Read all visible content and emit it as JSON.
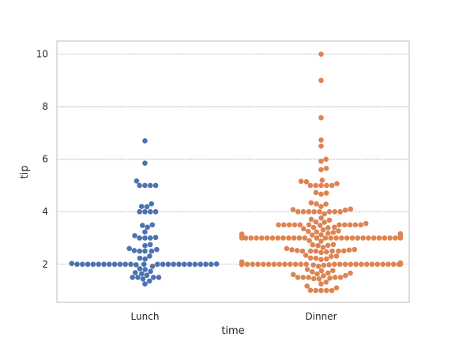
{
  "chart_data": {
    "type": "scatter",
    "title": "",
    "xlabel": "time",
    "ylabel": "tip",
    "categories": [
      "Lunch",
      "Dinner"
    ],
    "ylim": [
      0.55,
      10.5
    ],
    "yticks": [
      2,
      4,
      6,
      8,
      10
    ],
    "grid": "y",
    "legend": "none",
    "series": [
      {
        "category": "Lunch",
        "color": "#4c72b0",
        "values": [
          1.25,
          1.36,
          1.44,
          1.5,
          1.5,
          1.5,
          1.5,
          1.58,
          1.64,
          1.68,
          1.73,
          1.8,
          1.83,
          1.92,
          1.98,
          2.0,
          2.0,
          2.0,
          2.0,
          2.0,
          2.0,
          2.0,
          2.0,
          2.0,
          2.0,
          2.0,
          2.0,
          2.0,
          2.0,
          2.0,
          2.0,
          2.0,
          2.0,
          2.0,
          2.0,
          2.0,
          2.0,
          2.0,
          2.01,
          2.03,
          2.2,
          2.23,
          2.31,
          2.5,
          2.5,
          2.5,
          2.52,
          2.56,
          2.6,
          2.71,
          2.75,
          3.0,
          3.0,
          3.0,
          3.02,
          3.09,
          3.23,
          3.41,
          3.48,
          3.5,
          4.0,
          4.0,
          4.0,
          4.0,
          4.19,
          4.2,
          4.3,
          5.0,
          5.0,
          5.0,
          5.0,
          5.17,
          5.85,
          6.7
        ]
      },
      {
        "category": "Dinner",
        "color": "#dd8452",
        "values": [
          1.0,
          1.0,
          1.0,
          1.0,
          1.01,
          1.1,
          1.17,
          1.25,
          1.32,
          1.44,
          1.45,
          1.47,
          1.5,
          1.5,
          1.5,
          1.5,
          1.5,
          1.56,
          1.57,
          1.61,
          1.63,
          1.66,
          1.67,
          1.71,
          1.75,
          1.76,
          1.8,
          1.92,
          1.96,
          1.97,
          1.98,
          2.0,
          2.0,
          2.0,
          2.0,
          2.0,
          2.0,
          2.0,
          2.0,
          2.0,
          2.0,
          2.0,
          2.0,
          2.0,
          2.0,
          2.0,
          2.0,
          2.0,
          2.0,
          2.0,
          2.0,
          2.0,
          2.0,
          2.0,
          2.0,
          2.0,
          2.0,
          2.0,
          2.0,
          2.0,
          2.0,
          2.0,
          2.0,
          2.0,
          2.01,
          2.02,
          2.03,
          2.05,
          2.09,
          2.18,
          2.2,
          2.23,
          2.24,
          2.3,
          2.31,
          2.34,
          2.45,
          2.47,
          2.5,
          2.5,
          2.5,
          2.5,
          2.5,
          2.51,
          2.52,
          2.54,
          2.55,
          2.56,
          2.6,
          2.64,
          2.71,
          2.72,
          2.74,
          2.75,
          2.88,
          2.9,
          3.0,
          3.0,
          3.0,
          3.0,
          3.0,
          3.0,
          3.0,
          3.0,
          3.0,
          3.0,
          3.0,
          3.0,
          3.0,
          3.0,
          3.0,
          3.0,
          3.0,
          3.0,
          3.0,
          3.0,
          3.0,
          3.0,
          3.0,
          3.0,
          3.0,
          3.0,
          3.0,
          3.0,
          3.0,
          3.06,
          3.08,
          3.11,
          3.12,
          3.14,
          3.15,
          3.16,
          3.18,
          3.21,
          3.23,
          3.25,
          3.27,
          3.31,
          3.35,
          3.39,
          3.4,
          3.41,
          3.48,
          3.5,
          3.5,
          3.5,
          3.5,
          3.5,
          3.5,
          3.5,
          3.5,
          3.5,
          3.5,
          3.5,
          3.55,
          3.6,
          3.61,
          3.68,
          3.71,
          3.76,
          3.92,
          4.0,
          4.0,
          4.0,
          4.0,
          4.0,
          4.0,
          4.0,
          4.0,
          4.06,
          4.08,
          4.1,
          4.2,
          4.29,
          4.3,
          4.34,
          4.67,
          4.71,
          4.73,
          5.0,
          5.0,
          5.0,
          5.0,
          5.0,
          5.07,
          5.14,
          5.16,
          5.2,
          5.6,
          5.65,
          5.92,
          6.0,
          6.5,
          6.73,
          7.58,
          9.0,
          10.0
        ]
      }
    ]
  }
}
